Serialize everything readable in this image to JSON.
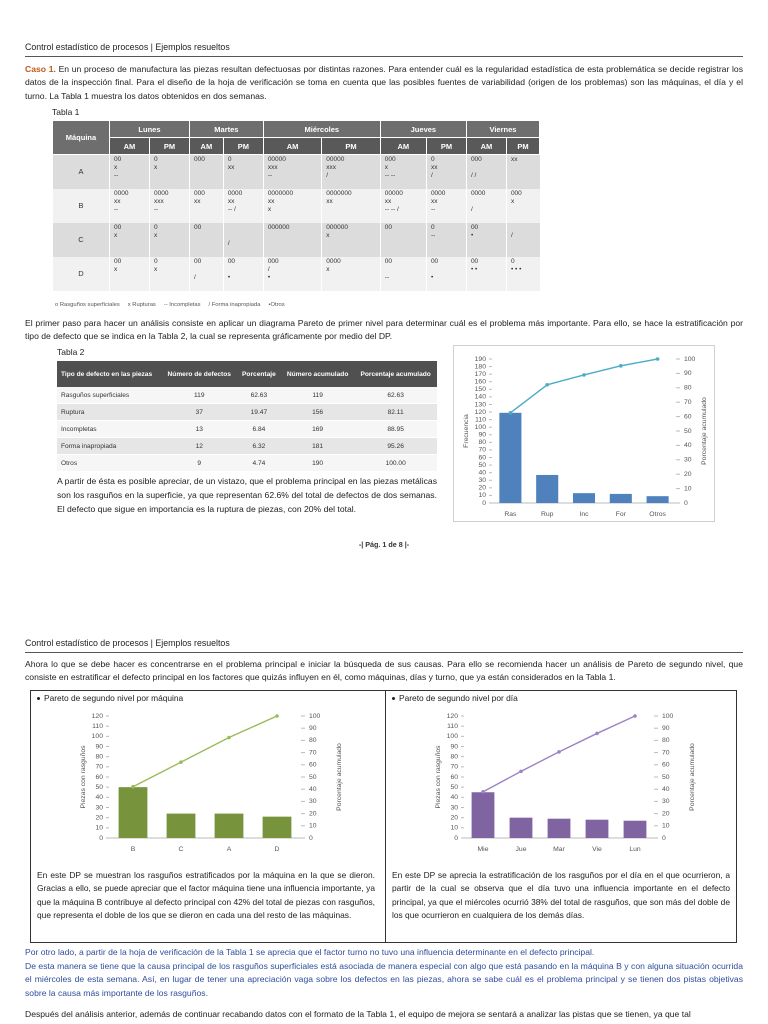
{
  "page1": {
    "header": "Control estadístico de procesos | Ejemplos resueltos",
    "case_label": "Caso 1.",
    "case_text": " En un proceso de manufactura las piezas resultan defectuosas por distintas razones. Para entender cuál es la regularidad estadística de esta problemática se decide registrar los datos de la inspección final. Para el diseño de la hoja de verificación se toma en cuenta que las posibles fuentes de variabilidad (origen de los problemas) son las máquinas, el día y el turno. La Tabla 1 muestra los datos obtenidos en dos semanas.",
    "table1_caption": "Tabla 1",
    "table1": {
      "machine_label": "Máquina",
      "days": [
        "Lunes",
        "Martes",
        "Miércoles",
        "Jueves",
        "Viernes"
      ],
      "shifts": [
        "AM",
        "PM"
      ],
      "rows": [
        {
          "machine": "A",
          "cells": [
            "00\nx\n--",
            "0\nx",
            "000",
            "0\nxx",
            "00000\nxxx\n--",
            "00000\nxxx\n/",
            "000\nx\n-- --",
            "0\nxx\n/",
            "000\n\n/ /",
            "xx"
          ]
        },
        {
          "machine": "B",
          "cells": [
            "0000\nxx\n--",
            "0000\nxxx\n--",
            "000\nxx",
            "0000\nxx\n-- /",
            "0000000\nxx\nx",
            "0000000\nxx",
            "00000\nxx\n-- -- /",
            "0000\nxx\n--",
            "0000\n\n/",
            "000\nx"
          ]
        },
        {
          "machine": "C",
          "cells": [
            "00\nx",
            "0\nx",
            "00",
            "\n\n/",
            "000000",
            "000000\nx",
            "00",
            "0\n--",
            "00\n•",
            "\n/"
          ]
        },
        {
          "machine": "D",
          "cells": [
            "00\nx",
            "0\nx",
            "00\n\n/",
            "00\n\n•",
            "000\n/\n•",
            "0000\nx",
            "00\n\n--",
            "00\n\n•",
            "00\n• •",
            "0\n• • •"
          ]
        }
      ]
    },
    "table1_legend": [
      "o Rasguños superficiales",
      "x Rupturas",
      "-- Incompletas",
      "/ Forma inapropiada",
      "•Otros"
    ],
    "paragraph2": "El primer paso para hacer un análisis consiste en aplicar un diagrama Pareto de primer nivel para determinar cuál es el problema más importante. Para ello, se hace la estratificación por tipo de defecto que se indica en la Tabla 2, la cual se representa gráficamente por medio del DP.",
    "table2_caption": "Tabla 2",
    "table2": {
      "headers": [
        "Tipo de defecto en las piezas",
        "Número de defectos",
        "Porcentaje",
        "Número acumulado",
        "Porcentaje acumulado"
      ],
      "rows": [
        [
          "Rasguños superficiales",
          "119",
          "62.63",
          "119",
          "62.63"
        ],
        [
          "Ruptura",
          "37",
          "19.47",
          "156",
          "82.11"
        ],
        [
          "Incompletas",
          "13",
          "6.84",
          "169",
          "88.95"
        ],
        [
          "Forma inapropiada",
          "12",
          "6.32",
          "181",
          "95.26"
        ],
        [
          "Otros",
          "9",
          "4.74",
          "190",
          "100.00"
        ]
      ]
    },
    "paragraph3": "A partir de ésta es posible apreciar, de un vistazo, que el problema principal en las piezas metálicas son los rasguños en la superficie, ya que representan 62.6% del total de defectos de dos semanas. El defecto que sigue en importancia es la ruptura de piezas, con 20% del total.",
    "footer": "-| Pág. 1 de 8 |-"
  },
  "page2": {
    "header": "Control estadístico de procesos | Ejemplos resueltos",
    "paragraph": "Ahora lo que se debe hacer es concentrarse en el problema principal e iniciar la búsqueda de sus causas. Para ello se recomienda hacer un análisis de Pareto de segundo nivel, que consiste en estratificar el defecto principal en los factores que quizás influyen en él, como máquinas, días y turno, que ya están considerados en la Tabla 1.",
    "panel_texts": [
      "En este DP se muestran los rasguños estratificados por la máquina en la que se dieron. Gracias a ello, se puede apreciar que el factor máquina tiene una influencia importante, ya que la máquina B contribuye al defecto principal con 42% del total de piezas con rasguños, que representa el doble de los que se dieron en cada una del resto de las máquinas.",
      "En este DP se aprecia la estratificación de los rasguños por el día en el que ocurrieron, a partir de la cual se observa que el día tuvo una influencia importante en el defecto principal, ya que el miércoles ocurrió 38% del total de rasguños, que son más del doble de los que ocurrieron en cualquiera de los demás días."
    ],
    "notes": [
      "Por otro lado, a partir de la hoja de verificación de la Tabla 1 se aprecia que el factor turno no tuvo una influencia determinante en el defecto principal.",
      "De esta manera se tiene que la causa principal de los rasguños superficiales está asociada de manera especial con algo que está pasando en la máquina B y con alguna situación ocurrida el miércoles de esta semana. Así, en lugar de tener una apreciación vaga sobre los defectos en las piezas, ahora se sabe cuál es el problema principal y se tienen dos pistas objetivas sobre la causa más importante de los rasguños."
    ],
    "last_paragraph": "Después del análisis anterior, además de continuar recabando datos con el formato de la Tabla 1, el equipo de mejora se sentará a analizar las pistas que se tienen, ya que tal"
  },
  "chart_data": [
    {
      "type": "pareto",
      "categories": [
        "Ras",
        "Rup",
        "Inc",
        "For",
        "Otros"
      ],
      "series": [
        {
          "color": "#4f81bd",
          "values": [
            119,
            37,
            13,
            12,
            9
          ]
        },
        {
          "color": "#4bacc6",
          "values": [
            62.63,
            82.11,
            88.95,
            95.26,
            100
          ],
          "axis": "y2"
        }
      ],
      "ylim": [
        0,
        190
      ],
      "yticks": [
        0,
        10,
        20,
        30,
        40,
        50,
        60,
        70,
        80,
        90,
        100,
        110,
        120,
        130,
        140,
        150,
        160,
        170,
        180,
        190
      ],
      "y2lim": [
        0,
        100
      ],
      "y2ticks": [
        0,
        10,
        20,
        30,
        40,
        50,
        60,
        70,
        80,
        90,
        100
      ],
      "ylabel": "Frecuencia",
      "y2label": "Porcentaje acumulado"
    },
    {
      "type": "pareto",
      "title": "Pareto de segundo nivel por máquina",
      "categories": [
        "B",
        "C",
        "A",
        "D"
      ],
      "series": [
        {
          "color": "#77933c",
          "values": [
            50,
            24,
            24,
            21
          ]
        },
        {
          "color": "#9bbb59",
          "values": [
            42.02,
            62.18,
            82.35,
            100
          ],
          "axis": "y2"
        }
      ],
      "ylim": [
        0,
        120
      ],
      "yticks": [
        0,
        10,
        20,
        30,
        40,
        50,
        60,
        70,
        80,
        90,
        100,
        110,
        120
      ],
      "y2lim": [
        0,
        100
      ],
      "y2ticks": [
        0,
        10,
        20,
        30,
        40,
        50,
        60,
        70,
        80,
        90,
        100
      ],
      "ylabel": "Piezas con rasguños",
      "y2label": "Porcentaje acumulado"
    },
    {
      "type": "pareto",
      "title": "Pareto de segundo nivel por día",
      "categories": [
        "Mie",
        "Jue",
        "Mar",
        "Vie",
        "Lun"
      ],
      "series": [
        {
          "color": "#8064a2",
          "values": [
            45,
            20,
            19,
            18,
            17
          ]
        },
        {
          "color": "#9a84c4",
          "values": [
            37.82,
            54.62,
            70.59,
            85.71,
            100
          ],
          "axis": "y2"
        }
      ],
      "ylim": [
        0,
        120
      ],
      "yticks": [
        0,
        10,
        20,
        30,
        40,
        50,
        60,
        70,
        80,
        90,
        100,
        110,
        120
      ],
      "y2lim": [
        0,
        100
      ],
      "y2ticks": [
        0,
        10,
        20,
        30,
        40,
        50,
        60,
        70,
        80,
        90,
        100
      ],
      "ylabel": "Piezas con rasguños",
      "y2label": "Porcentaje acumulado"
    }
  ]
}
